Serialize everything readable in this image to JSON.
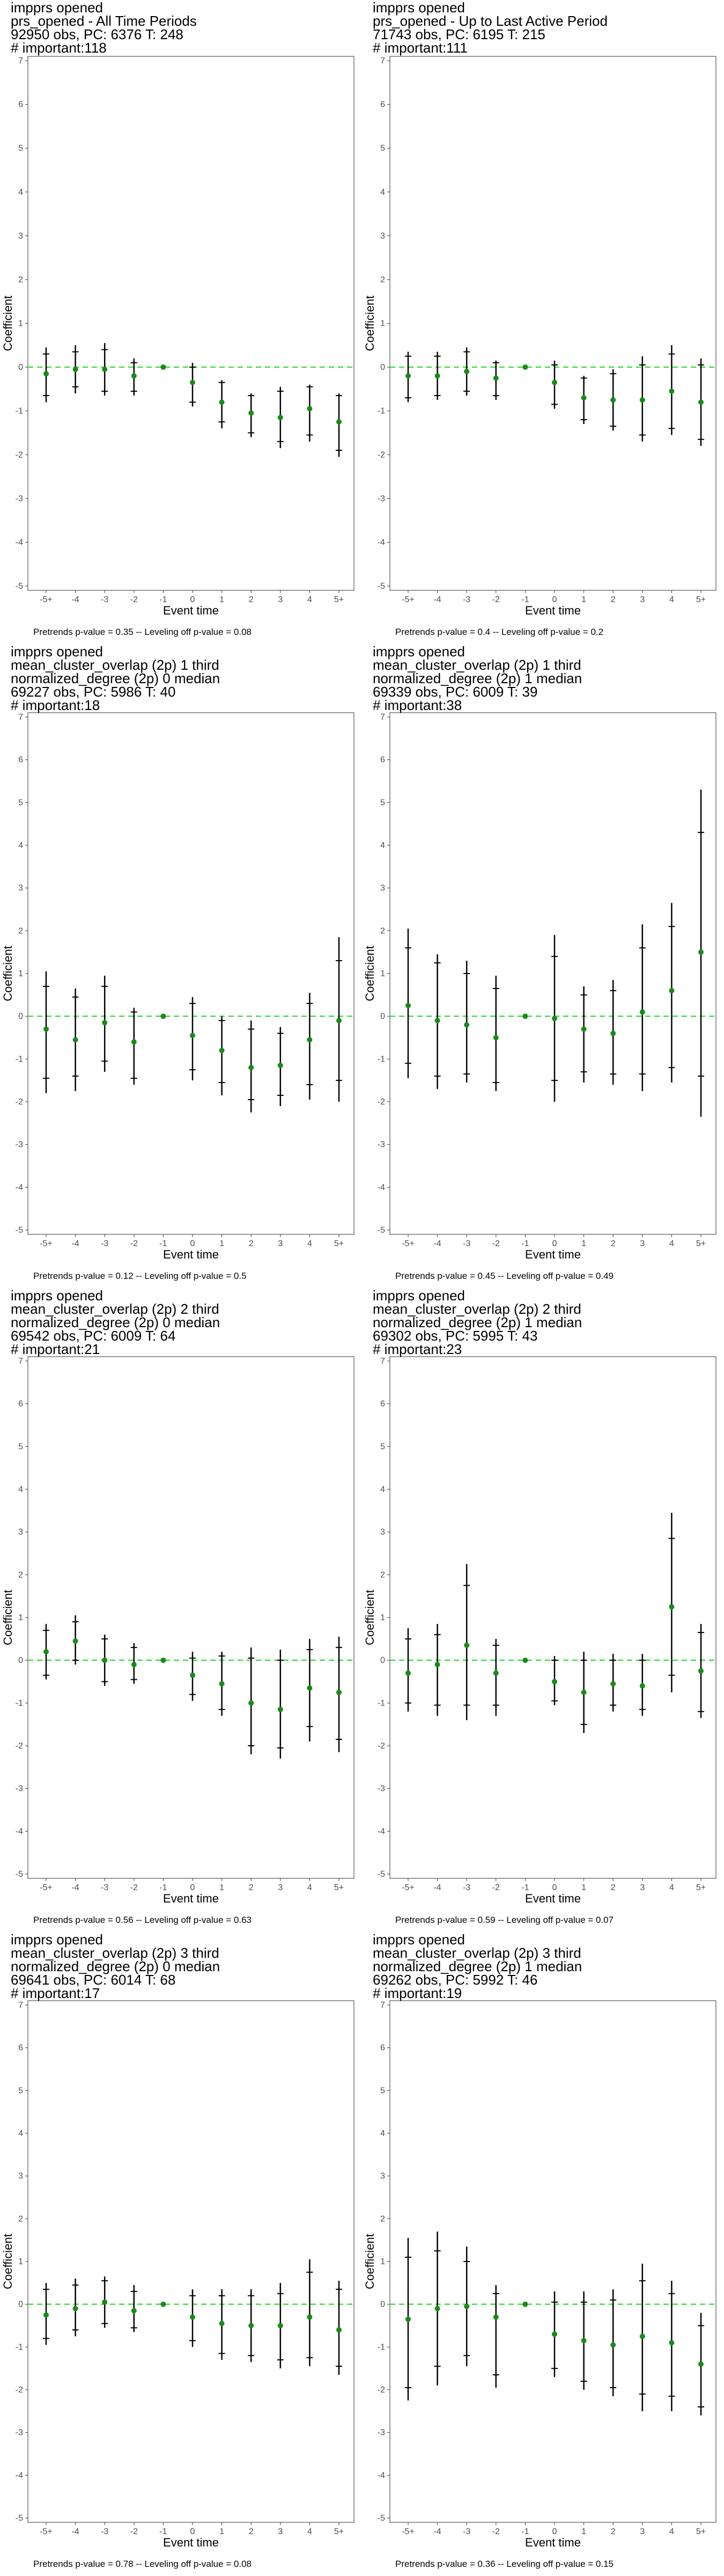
{
  "chart_data": [
    {
      "type": "scatter",
      "title_lines": [
        "imppr​s opened",
        "prs_opened - All Time Periods",
        "92950 obs, PC: 6376 T: 248",
        "# important:118"
      ],
      "xlabel": "Event time",
      "ylabel": "Coefficient",
      "categories": [
        "-5+",
        "-4",
        "-3",
        "-2",
        "-1",
        "0",
        "1",
        "2",
        "3",
        "4",
        "5+"
      ],
      "ylim": [
        -5,
        7
      ],
      "y_ticks": [
        "-5",
        "-4",
        "-3",
        "-2",
        "-1",
        "0",
        "1",
        "2",
        "3",
        "4",
        "5",
        "6",
        "7"
      ],
      "values": [
        -0.15,
        -0.05,
        -0.05,
        -0.2,
        0,
        -0.35,
        -0.8,
        -1.05,
        -1.15,
        -0.95,
        -1.25
      ],
      "ci95": [
        [
          -0.8,
          0.45
        ],
        [
          -0.6,
          0.5
        ],
        [
          -0.65,
          0.55
        ],
        [
          -0.65,
          0.2
        ],
        [
          0,
          0
        ],
        [
          -0.9,
          0.1
        ],
        [
          -1.4,
          -0.3
        ],
        [
          -1.6,
          -0.6
        ],
        [
          -1.85,
          -0.45
        ],
        [
          -1.7,
          -0.4
        ],
        [
          -2.05,
          -0.6
        ]
      ],
      "ci90": [
        [
          -0.65,
          0.3
        ],
        [
          -0.45,
          0.35
        ],
        [
          -0.55,
          0.4
        ],
        [
          -0.55,
          0.1
        ],
        [
          0,
          0
        ],
        [
          -0.8,
          0.0
        ],
        [
          -1.25,
          -0.35
        ],
        [
          -1.5,
          -0.65
        ],
        [
          -1.7,
          -0.55
        ],
        [
          -1.55,
          -0.45
        ],
        [
          -1.9,
          -0.65
        ]
      ],
      "reference_line": 0,
      "footer": "Pretrends p-value = 0.35 -- Leveling off p-value = 0.08"
    },
    {
      "type": "scatter",
      "title_lines": [
        "imppr​s opened",
        "prs_opened - Up to Last Active Period",
        "71743 obs, PC: 6195 T: 215",
        "# important:111"
      ],
      "xlabel": "Event time",
      "ylabel": "Coefficient",
      "categories": [
        "-5+",
        "-4",
        "-3",
        "-2",
        "-1",
        "0",
        "1",
        "2",
        "3",
        "4",
        "5+"
      ],
      "ylim": [
        -5,
        7
      ],
      "y_ticks": [
        "-5",
        "-4",
        "-3",
        "-2",
        "-1",
        "0",
        "1",
        "2",
        "3",
        "4",
        "5",
        "6",
        "7"
      ],
      "values": [
        -0.2,
        -0.2,
        -0.1,
        -0.25,
        0,
        -0.35,
        -0.7,
        -0.75,
        -0.75,
        -0.55,
        -0.8
      ],
      "ci95": [
        [
          -0.8,
          0.35
        ],
        [
          -0.75,
          0.35
        ],
        [
          -0.65,
          0.45
        ],
        [
          -0.75,
          0.15
        ],
        [
          0,
          0
        ],
        [
          -0.95,
          0.15
        ],
        [
          -1.3,
          -0.2
        ],
        [
          -1.45,
          -0.05
        ],
        [
          -1.7,
          0.25
        ],
        [
          -1.55,
          0.5
        ],
        [
          -1.8,
          0.2
        ]
      ],
      "ci90": [
        [
          -0.7,
          0.25
        ],
        [
          -0.65,
          0.25
        ],
        [
          -0.55,
          0.35
        ],
        [
          -0.65,
          0.1
        ],
        [
          0,
          0
        ],
        [
          -0.85,
          0.05
        ],
        [
          -1.2,
          -0.25
        ],
        [
          -1.35,
          -0.15
        ],
        [
          -1.55,
          0.05
        ],
        [
          -1.4,
          0.3
        ],
        [
          -1.65,
          0.05
        ]
      ],
      "reference_line": 0,
      "footer": "Pretrends p-value = 0.4 -- Leveling off p-value = 0.2"
    },
    {
      "type": "scatter",
      "title_lines": [
        "imppr​s opened",
        "mean_cluster_overlap (2p) 1 third",
        "normalized_degree (2p) 0 median",
        "69227 obs, PC: 5986 T: 40",
        "# important:18"
      ],
      "xlabel": "Event time",
      "ylabel": "Coefficient",
      "categories": [
        "-5+",
        "-4",
        "-3",
        "-2",
        "-1",
        "0",
        "1",
        "2",
        "3",
        "4",
        "5+"
      ],
      "ylim": [
        -5,
        7
      ],
      "y_ticks": [
        "-5",
        "-4",
        "-3",
        "-2",
        "-1",
        "0",
        "1",
        "2",
        "3",
        "4",
        "5",
        "6",
        "7"
      ],
      "values": [
        -0.3,
        -0.55,
        -0.15,
        -0.6,
        0,
        -0.45,
        -0.8,
        -1.2,
        -1.15,
        -0.55,
        -0.1
      ],
      "ci95": [
        [
          -1.8,
          1.05
        ],
        [
          -1.75,
          0.65
        ],
        [
          -1.3,
          0.95
        ],
        [
          -1.6,
          0.2
        ],
        [
          0,
          0
        ],
        [
          -1.5,
          0.45
        ],
        [
          -1.85,
          0.0
        ],
        [
          -2.25,
          -0.1
        ],
        [
          -2.1,
          -0.25
        ],
        [
          -1.95,
          0.55
        ],
        [
          -2.0,
          1.85
        ]
      ],
      "ci90": [
        [
          -1.45,
          0.7
        ],
        [
          -1.4,
          0.45
        ],
        [
          -1.05,
          0.7
        ],
        [
          -1.45,
          0.1
        ],
        [
          0,
          0
        ],
        [
          -1.25,
          0.3
        ],
        [
          -1.55,
          -0.1
        ],
        [
          -1.95,
          -0.3
        ],
        [
          -1.85,
          -0.4
        ],
        [
          -1.6,
          0.3
        ],
        [
          -1.5,
          1.3
        ]
      ],
      "reference_line": 0,
      "footer": "Pretrends p-value = 0.12 -- Leveling off p-value = 0.5"
    },
    {
      "type": "scatter",
      "title_lines": [
        "imppr​s opened",
        "mean_cluster_overlap (2p) 1 third",
        "normalized_degree (2p) 1 median",
        "69339 obs, PC: 6009 T: 39",
        "# important:38"
      ],
      "xlabel": "Event time",
      "ylabel": "Coefficient",
      "categories": [
        "-5+",
        "-4",
        "-3",
        "-2",
        "-1",
        "0",
        "1",
        "2",
        "3",
        "4",
        "5+"
      ],
      "ylim": [
        -5,
        7
      ],
      "y_ticks": [
        "-5",
        "-4",
        "-3",
        "-2",
        "-1",
        "0",
        "1",
        "2",
        "3",
        "4",
        "5",
        "6",
        "7"
      ],
      "values": [
        0.25,
        -0.1,
        -0.2,
        -0.5,
        0,
        -0.05,
        -0.3,
        -0.4,
        0.1,
        0.6,
        1.5
      ],
      "ci95": [
        [
          -1.45,
          2.05
        ],
        [
          -1.7,
          1.45
        ],
        [
          -1.55,
          1.3
        ],
        [
          -1.75,
          0.95
        ],
        [
          0,
          0
        ],
        [
          -2.0,
          1.9
        ],
        [
          -1.55,
          0.7
        ],
        [
          -1.6,
          0.85
        ],
        [
          -1.75,
          2.15
        ],
        [
          -1.55,
          2.65
        ],
        [
          -2.35,
          5.3
        ]
      ],
      "ci90": [
        [
          -1.1,
          1.6
        ],
        [
          -1.4,
          1.25
        ],
        [
          -1.35,
          1.0
        ],
        [
          -1.55,
          0.65
        ],
        [
          0,
          0
        ],
        [
          -1.5,
          1.4
        ],
        [
          -1.3,
          0.5
        ],
        [
          -1.35,
          0.6
        ],
        [
          -1.35,
          1.6
        ],
        [
          -1.2,
          2.1
        ],
        [
          -1.4,
          4.3
        ]
      ],
      "reference_line": 0,
      "footer": "Pretrends p-value = 0.45 -- Leveling off p-value = 0.49"
    },
    {
      "type": "scatter",
      "title_lines": [
        "imppr​s opened",
        "mean_cluster_overlap (2p) 2 third",
        "normalized_degree (2p) 0 median",
        "69542 obs, PC: 6009 T: 64",
        "# important:21"
      ],
      "xlabel": "Event time",
      "ylabel": "Coefficient",
      "categories": [
        "-5+",
        "-4",
        "-3",
        "-2",
        "-1",
        "0",
        "1",
        "2",
        "3",
        "4",
        "5+"
      ],
      "ylim": [
        -5,
        7
      ],
      "y_ticks": [
        "-5",
        "-4",
        "-3",
        "-2",
        "-1",
        "0",
        "1",
        "2",
        "3",
        "4",
        "5",
        "6",
        "7"
      ],
      "values": [
        0.2,
        0.45,
        0.0,
        -0.1,
        0,
        -0.35,
        -0.55,
        -1.0,
        -1.15,
        -0.65,
        -0.75
      ],
      "ci95": [
        [
          -0.45,
          0.85
        ],
        [
          -0.1,
          1.05
        ],
        [
          -0.6,
          0.6
        ],
        [
          -0.55,
          0.4
        ],
        [
          0,
          0
        ],
        [
          -0.95,
          0.2
        ],
        [
          -1.3,
          0.2
        ],
        [
          -2.2,
          0.3
        ],
        [
          -2.3,
          0.25
        ],
        [
          -1.9,
          0.5
        ],
        [
          -2.15,
          0.55
        ]
      ],
      "ci90": [
        [
          -0.35,
          0.7
        ],
        [
          0.0,
          0.9
        ],
        [
          -0.5,
          0.5
        ],
        [
          -0.45,
          0.3
        ],
        [
          0,
          0
        ],
        [
          -0.8,
          0.05
        ],
        [
          -1.15,
          0.1
        ],
        [
          -2.0,
          0.05
        ],
        [
          -2.05,
          0.0
        ],
        [
          -1.55,
          0.25
        ],
        [
          -1.85,
          0.3
        ]
      ],
      "reference_line": 0,
      "footer": "Pretrends p-value = 0.56 -- Leveling off p-value = 0.63"
    },
    {
      "type": "scatter",
      "title_lines": [
        "imppr​s opened",
        "mean_cluster_overlap (2p) 2 third",
        "normalized_degree (2p) 1 median",
        "69302 obs, PC: 5995 T: 43",
        "# important:23"
      ],
      "xlabel": "Event time",
      "ylabel": "Coefficient",
      "categories": [
        "-5+",
        "-4",
        "-3",
        "-2",
        "-1",
        "0",
        "1",
        "2",
        "3",
        "4",
        "5+"
      ],
      "ylim": [
        -5,
        7
      ],
      "y_ticks": [
        "-5",
        "-4",
        "-3",
        "-2",
        "-1",
        "0",
        "1",
        "2",
        "3",
        "4",
        "5",
        "6",
        "7"
      ],
      "values": [
        -0.3,
        -0.1,
        0.35,
        -0.3,
        0,
        -0.5,
        -0.75,
        -0.55,
        -0.6,
        1.25,
        -0.25
      ],
      "ci95": [
        [
          -1.2,
          0.75
        ],
        [
          -1.3,
          0.85
        ],
        [
          -1.4,
          2.25
        ],
        [
          -1.3,
          0.5
        ],
        [
          0,
          0
        ],
        [
          -1.05,
          0.1
        ],
        [
          -1.7,
          0.2
        ],
        [
          -1.2,
          0.15
        ],
        [
          -1.3,
          0.15
        ],
        [
          -0.75,
          3.45
        ],
        [
          -1.35,
          0.85
        ]
      ],
      "ci90": [
        [
          -1.0,
          0.5
        ],
        [
          -1.05,
          0.6
        ],
        [
          -1.05,
          1.75
        ],
        [
          -1.05,
          0.35
        ],
        [
          0,
          0
        ],
        [
          -0.95,
          0.0
        ],
        [
          -1.5,
          0.0
        ],
        [
          -1.05,
          0.0
        ],
        [
          -1.15,
          0.0
        ],
        [
          -0.35,
          2.85
        ],
        [
          -1.2,
          0.65
        ]
      ],
      "reference_line": 0,
      "footer": "Pretrends p-value = 0.59 -- Leveling off p-value = 0.07"
    },
    {
      "type": "scatter",
      "title_lines": [
        "imppr​s opened",
        "mean_cluster_overlap (2p) 3 third",
        "normalized_degree (2p) 0 median",
        "69641 obs, PC: 6014 T: 68",
        "# important:17"
      ],
      "xlabel": "Event time",
      "ylabel": "Coefficient",
      "categories": [
        "-5+",
        "-4",
        "-3",
        "-2",
        "-1",
        "0",
        "1",
        "2",
        "3",
        "4",
        "5+"
      ],
      "ylim": [
        -5,
        7
      ],
      "y_ticks": [
        "-5",
        "-4",
        "-3",
        "-2",
        "-1",
        "0",
        "1",
        "2",
        "3",
        "4",
        "5",
        "6",
        "7"
      ],
      "values": [
        -0.25,
        -0.1,
        0.05,
        -0.15,
        0,
        -0.3,
        -0.45,
        -0.5,
        -0.5,
        -0.3,
        -0.6
      ],
      "ci95": [
        [
          -0.95,
          0.5
        ],
        [
          -0.75,
          0.6
        ],
        [
          -0.55,
          0.65
        ],
        [
          -0.65,
          0.45
        ],
        [
          0,
          0
        ],
        [
          -1.0,
          0.35
        ],
        [
          -1.3,
          0.35
        ],
        [
          -1.35,
          0.35
        ],
        [
          -1.5,
          0.5
        ],
        [
          -1.45,
          1.05
        ],
        [
          -1.65,
          0.55
        ]
      ],
      "ci90": [
        [
          -0.8,
          0.35
        ],
        [
          -0.6,
          0.45
        ],
        [
          -0.45,
          0.55
        ],
        [
          -0.55,
          0.3
        ],
        [
          0,
          0
        ],
        [
          -0.85,
          0.2
        ],
        [
          -1.15,
          0.2
        ],
        [
          -1.2,
          0.2
        ],
        [
          -1.3,
          0.25
        ],
        [
          -1.25,
          0.75
        ],
        [
          -1.45,
          0.35
        ]
      ],
      "reference_line": 0,
      "footer": "Pretrends p-value = 0.78 -- Leveling off p-value = 0.08"
    },
    {
      "type": "scatter",
      "title_lines": [
        "imppr​s opened",
        "mean_cluster_overlap (2p) 3 third",
        "normalized_degree (2p) 1 median",
        "69262 obs, PC: 5992 T: 46",
        "# important:19"
      ],
      "xlabel": "Event time",
      "ylabel": "Coefficient",
      "categories": [
        "-5+",
        "-4",
        "-3",
        "-2",
        "-1",
        "0",
        "1",
        "2",
        "3",
        "4",
        "5+"
      ],
      "ylim": [
        -5,
        7
      ],
      "y_ticks": [
        "-5",
        "-4",
        "-3",
        "-2",
        "-1",
        "0",
        "1",
        "2",
        "3",
        "4",
        "5",
        "6",
        "7"
      ],
      "values": [
        -0.35,
        -0.1,
        -0.05,
        -0.3,
        0,
        -0.7,
        -0.85,
        -0.95,
        -0.75,
        -0.9,
        -1.4
      ],
      "ci95": [
        [
          -2.25,
          1.55
        ],
        [
          -1.9,
          1.7
        ],
        [
          -1.45,
          1.35
        ],
        [
          -1.95,
          0.45
        ],
        [
          0,
          0
        ],
        [
          -1.7,
          0.3
        ],
        [
          -2.0,
          0.3
        ],
        [
          -2.15,
          0.35
        ],
        [
          -2.5,
          0.95
        ],
        [
          -2.5,
          0.55
        ],
        [
          -2.6,
          -0.2
        ]
      ],
      "ci90": [
        [
          -1.95,
          1.1
        ],
        [
          -1.45,
          1.25
        ],
        [
          -1.2,
          1.0
        ],
        [
          -1.65,
          0.25
        ],
        [
          0,
          0
        ],
        [
          -1.5,
          0.05
        ],
        [
          -1.8,
          0.05
        ],
        [
          -1.95,
          0.1
        ],
        [
          -2.1,
          0.55
        ],
        [
          -2.15,
          0.25
        ],
        [
          -2.4,
          -0.5
        ]
      ],
      "reference_line": 0,
      "footer": "Pretrends p-value = 0.36 -- Leveling off p-value = 0.15"
    }
  ],
  "colors": {
    "point": "#1a8a1a",
    "reference_line": "#44dd44",
    "error_bar": "#000000",
    "panel_border": "#333333",
    "tick_text": "#4d4d4d"
  }
}
